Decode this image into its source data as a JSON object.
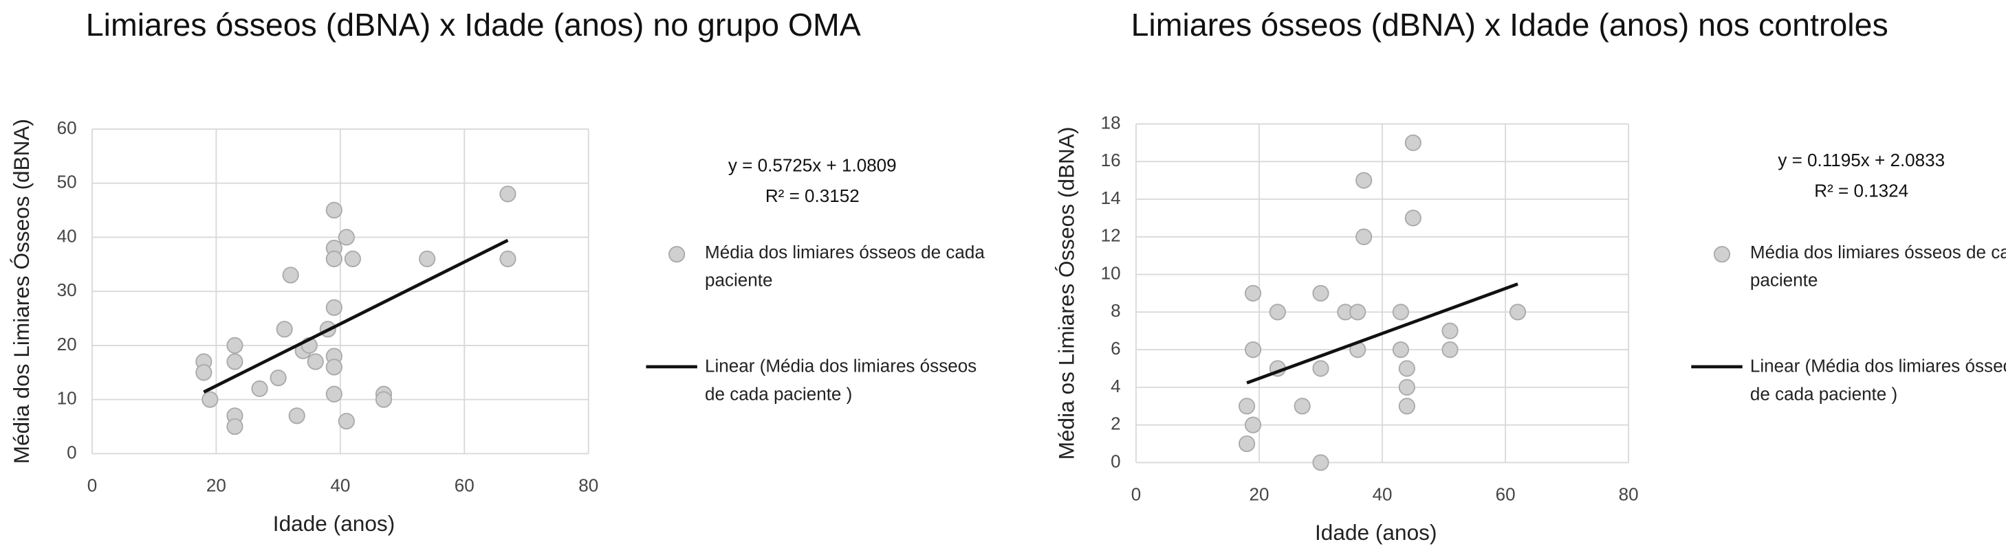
{
  "chart_data": [
    {
      "type": "scatter",
      "title": "Limiares ósseos (dBNA) x Idade (anos) no grupo OMA",
      "x_label": "Idade (anos)",
      "y_label": "Média dos Limiares Ósseos (dBNA)",
      "xlim": [
        0,
        80
      ],
      "xticks": [
        0,
        20,
        40,
        60,
        80
      ],
      "ylim": [
        0,
        60
      ],
      "yticks": [
        0,
        10,
        20,
        30,
        40,
        50,
        60
      ],
      "grid": true,
      "series": [
        {
          "name": "Média dos limiares ósseos de cada paciente",
          "color": "#d0d0d0",
          "x": [
            18,
            18,
            19,
            23,
            23,
            23,
            23,
            27,
            30,
            31,
            32,
            33,
            34,
            35,
            36,
            38,
            39,
            39,
            39,
            39,
            39,
            39,
            39,
            41,
            42,
            47,
            47,
            41,
            54,
            67,
            67
          ],
          "values": [
            17,
            15,
            10,
            20,
            17,
            7,
            5,
            12,
            14,
            23,
            33,
            7,
            19,
            20,
            17,
            23,
            11,
            45,
            38,
            36,
            27,
            18,
            16,
            40,
            36,
            11,
            10,
            6,
            36,
            48,
            36
          ]
        }
      ],
      "trendline": {
        "name": "Linear (Média dos limiares ósseos de cada paciente )",
        "color": "#111111",
        "equation": "y = 0.5725x + 1.0809",
        "r_squared": "R² = 0.3152",
        "slope": 0.5725,
        "intercept": 1.0809
      }
    },
    {
      "type": "scatter",
      "title": "Limiares ósseos (dBNA) x Idade (anos) nos controles",
      "x_label": "Idade (anos)",
      "y_label": "Média os Limiares Ósseos (dBNA)",
      "xlim": [
        0,
        80
      ],
      "xticks": [
        0,
        20,
        40,
        60,
        80
      ],
      "ylim": [
        0,
        18
      ],
      "yticks": [
        0,
        2,
        4,
        6,
        8,
        10,
        12,
        14,
        16,
        18
      ],
      "grid": true,
      "series": [
        {
          "name": "Média dos limiares ósseos de cada paciente",
          "color": "#d0d0d0",
          "x": [
            18,
            18,
            19,
            19,
            19,
            23,
            23,
            27,
            30,
            30,
            30,
            34,
            36,
            36,
            37,
            37,
            43,
            43,
            44,
            44,
            44,
            45,
            45,
            51,
            51,
            62
          ],
          "values": [
            3,
            1,
            9,
            6,
            2,
            8,
            5,
            3,
            9,
            5,
            0,
            8,
            8,
            6,
            15,
            12,
            8,
            6,
            5,
            4,
            3,
            17,
            13,
            7,
            6,
            8
          ]
        }
      ],
      "trendline": {
        "name": "Linear (Média dos limiares ósseos de cada paciente )",
        "color": "#111111",
        "equation": "y = 0.1195x + 2.0833",
        "r_squared": "R² = 0.1324",
        "slope": 0.1195,
        "intercept": 2.0833
      }
    }
  ]
}
